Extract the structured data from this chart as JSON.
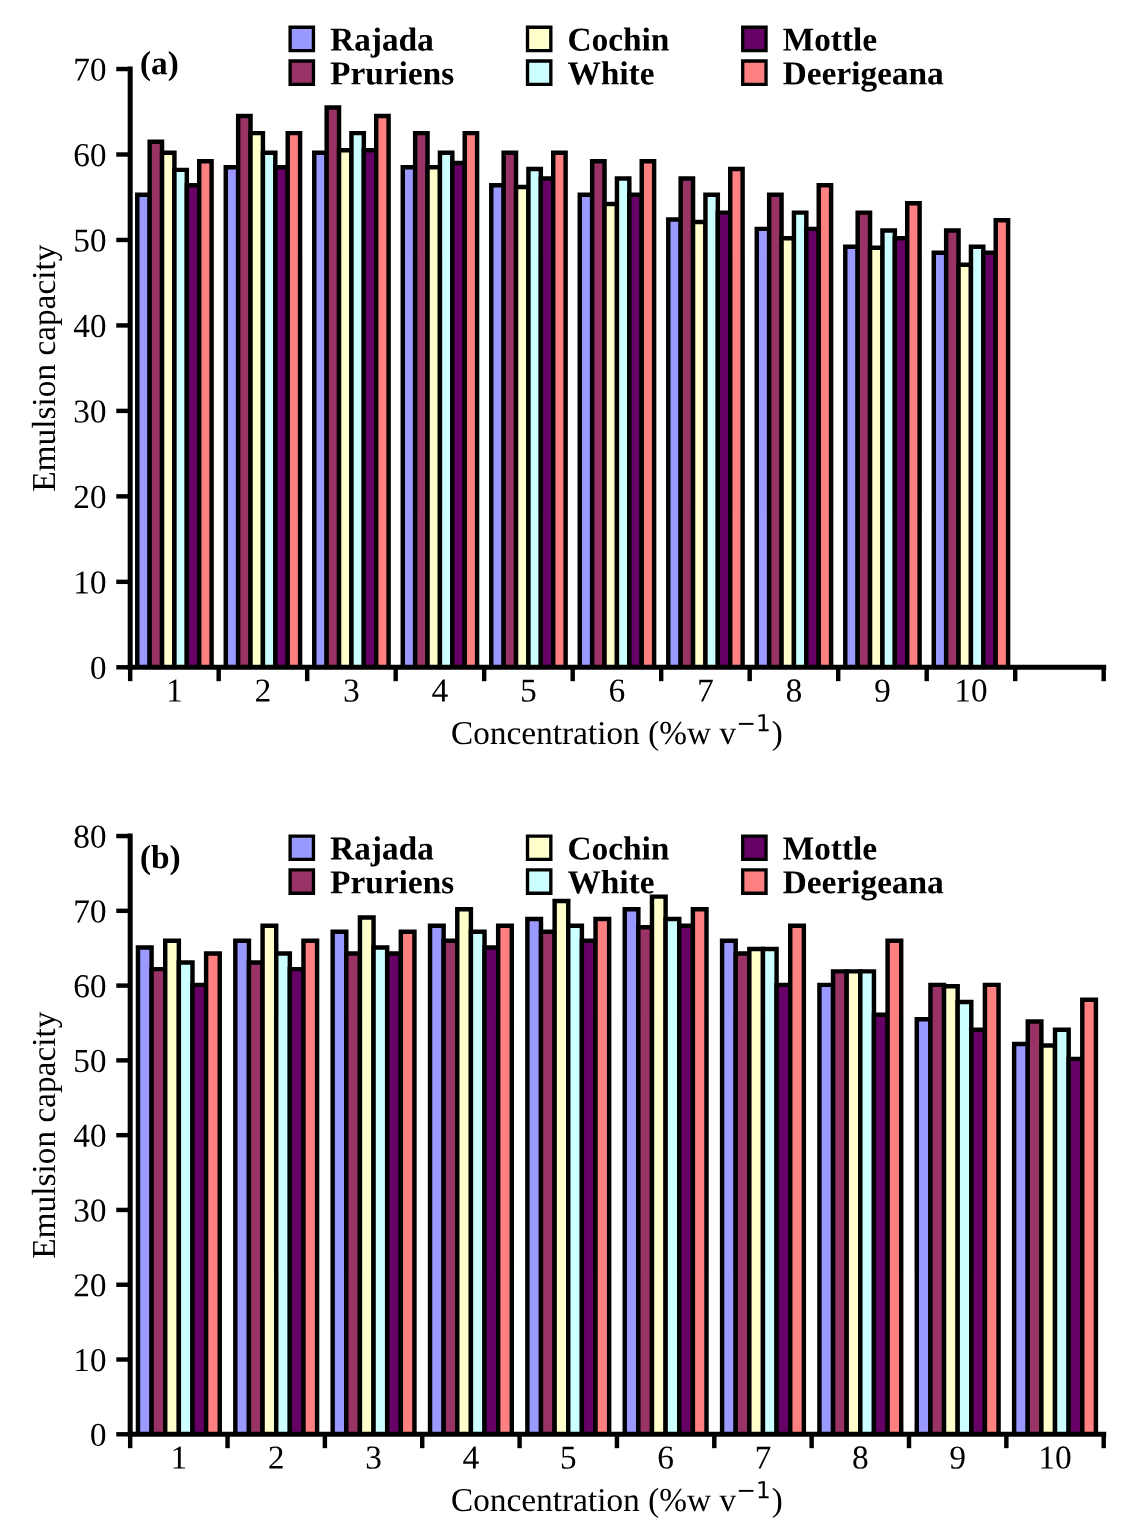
{
  "chart_data": [
    {
      "type": "bar",
      "title": "(a)",
      "xlabel": "Concentration (%w v$^{−1}$)",
      "ylabel": "Emulsion capacity",
      "categories": [
        "1",
        "2",
        "3",
        "4",
        "5",
        "6",
        "7",
        "8",
        "9",
        "10",
        null
      ],
      "ylim": [
        0,
        70
      ],
      "yticks": [
        0,
        10,
        20,
        30,
        40,
        50,
        60,
        70
      ],
      "legend": "top",
      "grid": false,
      "series": [
        {
          "name": "Rajada",
          "color": "#9999ff",
          "values": [
            55.3,
            58.5,
            60.2,
            58.5,
            56.4,
            55.3,
            52.4,
            51.3,
            49.2,
            48.5,
            null
          ]
        },
        {
          "name": "Pruriens",
          "color": "#993366",
          "values": [
            61.5,
            64.5,
            65.5,
            62.5,
            60.2,
            59.2,
            57.2,
            55.3,
            53.2,
            51.1,
            null
          ]
        },
        {
          "name": "Cochin",
          "color": "#ffffcc",
          "values": [
            60.2,
            62.5,
            60.5,
            58.5,
            56.2,
            54.2,
            52.1,
            50.2,
            49.1,
            47.1,
            null
          ]
        },
        {
          "name": "White",
          "color": "#ccffff",
          "values": [
            58.2,
            60.2,
            62.5,
            60.2,
            58.3,
            57.2,
            55.3,
            53.2,
            51.1,
            49.2,
            null
          ]
        },
        {
          "name": "Mottle",
          "color": "#660066",
          "values": [
            56.4,
            58.5,
            60.5,
            59.0,
            57.2,
            55.3,
            53.2,
            51.3,
            50.2,
            48.5,
            null
          ]
        },
        {
          "name": "Deerigeana",
          "color": "#ff8080",
          "values": [
            59.2,
            62.5,
            64.5,
            62.5,
            60.2,
            59.2,
            58.3,
            56.4,
            54.3,
            52.3,
            null
          ]
        }
      ]
    },
    {
      "type": "bar",
      "title": "(b)",
      "xlabel": "Concentration (%w v$^{−1}$)",
      "ylabel": "Emulsion capacity",
      "categories": [
        "1",
        "2",
        "3",
        "4",
        "5",
        "6",
        "7",
        "8",
        "9",
        "10"
      ],
      "ylim": [
        0,
        80
      ],
      "yticks": [
        0,
        10,
        20,
        30,
        40,
        50,
        60,
        70,
        80
      ],
      "legend": "top",
      "grid": false,
      "series": [
        {
          "name": "Rajada",
          "color": "#9999ff",
          "values": [
            65.1,
            66.0,
            67.2,
            68.0,
            68.9,
            70.2,
            66.0,
            60.1,
            55.5,
            52.2
          ]
        },
        {
          "name": "Pruriens",
          "color": "#993366",
          "values": [
            62.2,
            63.1,
            64.3,
            66.0,
            67.2,
            67.8,
            64.3,
            61.9,
            60.1,
            55.2
          ]
        },
        {
          "name": "Cochin",
          "color": "#ffffcc",
          "values": [
            66.0,
            68.0,
            69.1,
            70.2,
            71.3,
            71.9,
            64.9,
            61.9,
            59.9,
            52.0
          ]
        },
        {
          "name": "White",
          "color": "#ccffff",
          "values": [
            63.1,
            64.3,
            65.1,
            67.2,
            68.0,
            68.9,
            64.9,
            61.9,
            57.8,
            54.1
          ]
        },
        {
          "name": "Mottle",
          "color": "#660066",
          "values": [
            60.1,
            62.2,
            64.3,
            65.1,
            66.0,
            68.0,
            60.1,
            56.1,
            54.1,
            50.2
          ]
        },
        {
          "name": "Deerigeana",
          "color": "#ff8080",
          "values": [
            64.3,
            66.0,
            67.2,
            68.0,
            68.9,
            70.2,
            68.0,
            66.0,
            60.1,
            58.1
          ]
        }
      ]
    }
  ]
}
